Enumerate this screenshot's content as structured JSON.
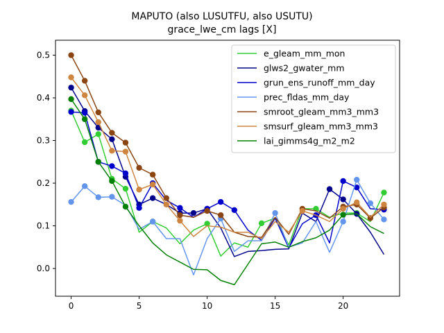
{
  "chart_data": {
    "type": "line",
    "title": "MAPUTO (also LUSUTFU, also USUTU)",
    "subtitle": "grace_lwe_cm lags [X]",
    "xlabel": "",
    "ylabel": "",
    "xlim": [
      -1.15,
      24.15
    ],
    "ylim": [
      -0.065,
      0.535
    ],
    "xticks": [
      0,
      5,
      10,
      15,
      20
    ],
    "yticks": [
      0.0,
      0.1,
      0.2,
      0.3,
      0.4,
      0.5
    ],
    "xtick_labels": [
      "0",
      "5",
      "10",
      "15",
      "20"
    ],
    "ytick_labels": [
      "0.0",
      "0.1",
      "0.2",
      "0.3",
      "0.4",
      "0.5"
    ],
    "grid": false,
    "legend_position": "top-right",
    "x": [
      0,
      1,
      2,
      3,
      4,
      5,
      6,
      7,
      8,
      9,
      10,
      11,
      12,
      13,
      14,
      15,
      16,
      17,
      18,
      19,
      20,
      21,
      22,
      23
    ],
    "series": [
      {
        "name": "e_gleam_mm_mon",
        "color": "#32cd32",
        "values": [
          0.37,
          0.296,
          0.315,
          0.21,
          0.187,
          0.085,
          0.11,
          0.095,
          0.058,
          0.09,
          0.105,
          0.029,
          0.06,
          0.05,
          0.106,
          0.118,
          0.055,
          0.14,
          0.14,
          0.12,
          0.13,
          0.13,
          0.11,
          0.178
        ],
        "markers": [
          true,
          true,
          true,
          true,
          true,
          false,
          true,
          false,
          false,
          false,
          true,
          false,
          false,
          false,
          true,
          false,
          false,
          false,
          true,
          false,
          false,
          true,
          false,
          true
        ]
      },
      {
        "name": "glws2_gwater_mm",
        "color": "#00008b",
        "values": [
          0.424,
          0.369,
          0.33,
          0.303,
          0.215,
          0.15,
          0.165,
          0.15,
          0.13,
          0.13,
          0.14,
          0.095,
          0.028,
          0.04,
          0.042,
          0.045,
          0.046,
          0.13,
          0.11,
          0.186,
          0.162,
          0.128,
          0.085,
          0.033
        ],
        "markers": [
          true,
          true,
          true,
          true,
          true,
          true,
          true,
          false,
          true,
          true,
          true,
          false,
          false,
          false,
          false,
          false,
          false,
          false,
          false,
          true,
          true,
          true,
          false,
          false
        ]
      },
      {
        "name": "grun_ens_runoff_mm_day",
        "color": "#0000cd",
        "values": [
          0.367,
          0.365,
          0.25,
          0.24,
          0.223,
          0.142,
          0.2,
          0.16,
          0.142,
          0.12,
          0.14,
          0.156,
          0.137,
          0.09,
          0.066,
          0.118,
          0.048,
          0.105,
          0.125,
          0.06,
          0.205,
          0.19,
          0.14,
          0.138
        ],
        "markers": [
          true,
          true,
          true,
          true,
          true,
          true,
          true,
          false,
          true,
          false,
          true,
          true,
          true,
          false,
          false,
          false,
          false,
          false,
          true,
          false,
          true,
          true,
          false,
          true
        ]
      },
      {
        "name": "prec_fldas_mm_day",
        "color": "#6495ed",
        "values": [
          0.156,
          0.193,
          0.167,
          0.168,
          0.148,
          0.092,
          0.11,
          0.07,
          0.07,
          -0.015,
          0.07,
          0.117,
          0.04,
          0.065,
          0.065,
          0.13,
          0.05,
          0.06,
          0.11,
          0.038,
          0.11,
          0.208,
          0.153,
          0.115
        ],
        "markers": [
          true,
          true,
          true,
          true,
          false,
          false,
          true,
          false,
          false,
          false,
          false,
          true,
          false,
          false,
          false,
          true,
          false,
          false,
          false,
          false,
          true,
          true,
          true,
          true
        ]
      },
      {
        "name": "smroot_gleam_mm3_mm3",
        "color": "#8b4513",
        "values": [
          0.5,
          0.44,
          0.366,
          0.318,
          0.295,
          0.236,
          0.22,
          0.165,
          0.125,
          0.12,
          0.135,
          0.125,
          0.085,
          0.075,
          0.073,
          0.12,
          0.08,
          0.14,
          0.135,
          0.118,
          0.145,
          0.15,
          0.118,
          0.143
        ],
        "markers": [
          true,
          true,
          true,
          true,
          true,
          true,
          true,
          true,
          true,
          false,
          true,
          true,
          false,
          false,
          false,
          false,
          false,
          true,
          false,
          false,
          true,
          true,
          true,
          true
        ]
      },
      {
        "name": "smsurf_gleam_mm3_mm3",
        "color": "#cd853f",
        "values": [
          0.448,
          0.406,
          0.343,
          0.276,
          0.274,
          0.185,
          0.197,
          0.15,
          0.112,
          0.075,
          0.1,
          0.097,
          0.085,
          0.085,
          0.07,
          0.11,
          0.085,
          0.135,
          0.125,
          0.11,
          0.14,
          0.155,
          0.12,
          0.15
        ],
        "markers": [
          true,
          true,
          true,
          true,
          true,
          true,
          true,
          true,
          true,
          false,
          false,
          false,
          false,
          false,
          false,
          false,
          false,
          true,
          false,
          false,
          true,
          true,
          false,
          true
        ]
      },
      {
        "name": "lai_gimms4g_m2_m2",
        "color": "#008000",
        "values": [
          0.397,
          0.35,
          0.25,
          0.205,
          0.145,
          0.1,
          0.06,
          0.032,
          0.015,
          -0.002,
          -0.003,
          -0.028,
          -0.038,
          0.01,
          0.058,
          0.062,
          0.05,
          0.063,
          0.072,
          0.09,
          0.126,
          0.128,
          0.098,
          0.082
        ],
        "markers": [
          true,
          true,
          true,
          true,
          true,
          false,
          false,
          false,
          false,
          false,
          false,
          false,
          false,
          false,
          false,
          false,
          false,
          false,
          false,
          false,
          true,
          false,
          false,
          false
        ]
      }
    ]
  }
}
